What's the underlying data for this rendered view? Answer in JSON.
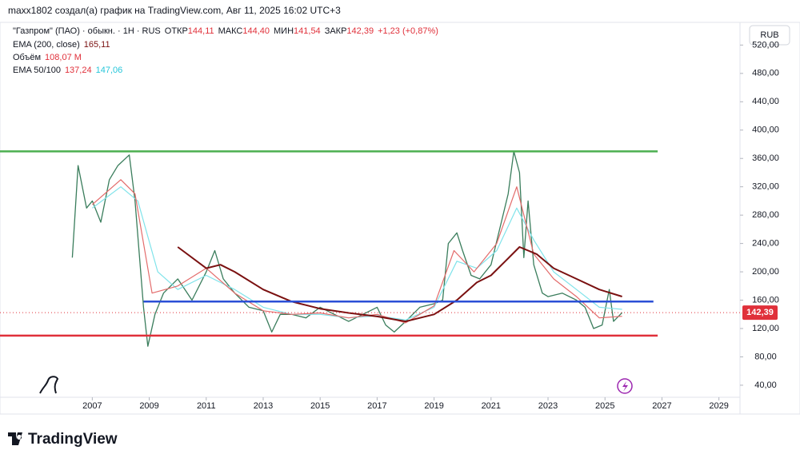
{
  "header": "maxx1802 создал(а) график на TradingView.com, Авг 11, 2025 16:02 UTC+3",
  "legend": {
    "symbol": "\"Газпром\" (ПАО) · обыкн. · 1Н · RUS",
    "ohlc": [
      {
        "label": "ОТКР",
        "value": "144,11"
      },
      {
        "label": "МАКС",
        "value": "144,40"
      },
      {
        "label": "МИН",
        "value": "141,54"
      },
      {
        "label": "ЗАКР",
        "value": "142,39"
      }
    ],
    "change": "+1,23 (+0,87%)",
    "ema200": {
      "label": "EMA (200, close)",
      "value": "165,11"
    },
    "volume": {
      "label": "Объём",
      "value": "108,07 M"
    },
    "ema50_100": {
      "label": "EMA 50/100",
      "value1": "137,24",
      "value2": "147,06"
    }
  },
  "currency": "RUB",
  "brand": "TradingView",
  "chart_data": {
    "type": "line",
    "xlim": [
      2003.76,
      2029.74
    ],
    "xticks": [
      2007,
      2009,
      2011,
      2013,
      2015,
      2017,
      2019,
      2021,
      2023,
      2025,
      2027,
      2029
    ],
    "ylim": [
      23,
      552
    ],
    "yticks": [
      {
        "value": 40,
        "label": "40,00"
      },
      {
        "value": 80,
        "label": "80,00"
      },
      {
        "value": 120,
        "label": "120,00"
      },
      {
        "value": 160,
        "label": "160,00"
      },
      {
        "value": 200,
        "label": "200,00"
      },
      {
        "value": 240,
        "label": "240,00"
      },
      {
        "value": 280,
        "label": "280,00"
      },
      {
        "value": 320,
        "label": "320,00"
      },
      {
        "value": 360,
        "label": "360,00"
      },
      {
        "value": 400,
        "label": "400,00"
      },
      {
        "value": 440,
        "label": "440,00"
      },
      {
        "value": 480,
        "label": "480,00"
      },
      {
        "value": 520,
        "label": "520,00"
      }
    ],
    "last_price": 142.39,
    "last_price_label": "142,39",
    "series": [
      {
        "name": "Price",
        "color": "#3a7d5c",
        "width": 1.3,
        "x": [
          2006.3,
          2006.5,
          2006.8,
          2007.0,
          2007.3,
          2007.6,
          2007.9,
          2008.3,
          2008.5,
          2008.8,
          2008.95,
          2009.2,
          2009.5,
          2010.0,
          2010.5,
          2011.0,
          2011.3,
          2011.6,
          2012.0,
          2012.5,
          2013.0,
          2013.3,
          2013.6,
          2014.0,
          2014.5,
          2015.0,
          2015.5,
          2016.0,
          2016.5,
          2017.0,
          2017.3,
          2017.6,
          2018.0,
          2018.5,
          2019.0,
          2019.3,
          2019.5,
          2019.8,
          2020.0,
          2020.3,
          2020.6,
          2021.0,
          2021.3,
          2021.6,
          2021.8,
          2022.0,
          2022.15,
          2022.3,
          2022.5,
          2022.8,
          2023.0,
          2023.5,
          2024.0,
          2024.3,
          2024.6,
          2024.9,
          2025.15,
          2025.3,
          2025.6
        ],
        "values": [
          220,
          350,
          290,
          300,
          270,
          330,
          350,
          365,
          300,
          150,
          95,
          140,
          170,
          190,
          160,
          200,
          230,
          190,
          170,
          150,
          145,
          115,
          140,
          140,
          135,
          150,
          140,
          130,
          140,
          150,
          125,
          115,
          130,
          150,
          155,
          160,
          240,
          255,
          230,
          195,
          190,
          210,
          260,
          310,
          370,
          340,
          220,
          300,
          210,
          170,
          165,
          170,
          160,
          150,
          120,
          125,
          175,
          130,
          142.39
        ]
      },
      {
        "name": "EMA 100",
        "color": "#7fe3ea",
        "width": 1.2,
        "x": [
          2007.0,
          2008.0,
          2008.6,
          2009.3,
          2010.0,
          2011.0,
          2012.0,
          2013.0,
          2014.0,
          2015.0,
          2016.0,
          2017.0,
          2018.0,
          2019.0,
          2019.8,
          2020.5,
          2021.2,
          2021.9,
          2022.5,
          2023.2,
          2024.0,
          2024.8,
          2025.6
        ],
        "values": [
          290,
          320,
          300,
          200,
          175,
          195,
          175,
          150,
          140,
          140,
          135,
          138,
          132,
          150,
          215,
          205,
          230,
          290,
          245,
          200,
          175,
          150,
          147.06
        ]
      },
      {
        "name": "EMA 50",
        "color": "#e36b6b",
        "width": 1.2,
        "x": [
          2007.0,
          2008.0,
          2008.5,
          2009.1,
          2010.0,
          2011.0,
          2012.0,
          2013.0,
          2014.0,
          2015.0,
          2016.0,
          2017.0,
          2018.0,
          2019.0,
          2019.7,
          2020.4,
          2021.2,
          2021.9,
          2022.5,
          2023.2,
          2024.0,
          2024.8,
          2025.6
        ],
        "values": [
          295,
          330,
          310,
          170,
          180,
          205,
          170,
          145,
          140,
          142,
          135,
          140,
          128,
          152,
          230,
          200,
          240,
          320,
          225,
          190,
          165,
          135,
          137.24
        ]
      },
      {
        "name": "EMA 200",
        "color": "#7a1010",
        "width": 2,
        "x": [
          2010.0,
          2011.0,
          2011.5,
          2012.0,
          2013.0,
          2014.0,
          2015.0,
          2016.0,
          2017.0,
          2018.0,
          2019.0,
          2019.8,
          2020.5,
          2021.0,
          2021.5,
          2022.0,
          2022.6,
          2023.2,
          2024.0,
          2024.8,
          2025.6
        ],
        "values": [
          235,
          205,
          210,
          200,
          175,
          158,
          148,
          142,
          137,
          130,
          140,
          160,
          185,
          195,
          215,
          235,
          225,
          205,
          190,
          175,
          165.11
        ]
      }
    ],
    "levels": [
      {
        "value": 370,
        "from": 2003.76,
        "to": 2026.85,
        "color": "#4caf50"
      },
      {
        "value": 158,
        "from": 2008.8,
        "to": 2026.7,
        "color": "#2b4fd6"
      },
      {
        "value": 110,
        "from": 2003.76,
        "to": 2026.85,
        "color": "#e0303a"
      }
    ]
  }
}
